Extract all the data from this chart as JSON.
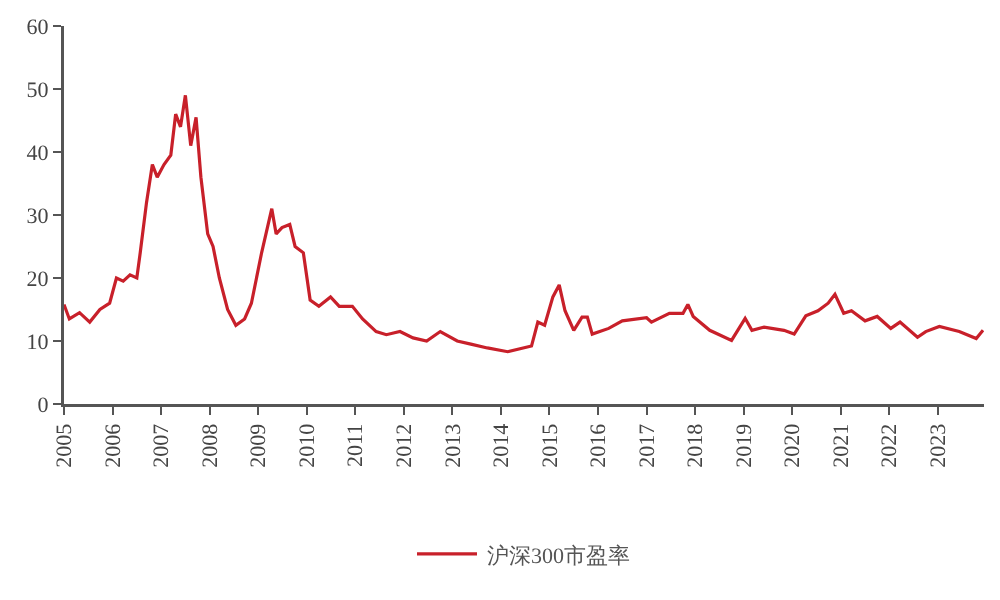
{
  "chart_data": {
    "type": "line",
    "x": [
      2005.0,
      2005.11,
      2005.32,
      2005.53,
      2005.74,
      2005.94,
      2006.08,
      2006.22,
      2006.36,
      2006.5,
      2006.57,
      2006.7,
      2006.82,
      2006.92,
      2007.06,
      2007.2,
      2007.3,
      2007.4,
      2007.5,
      2007.61,
      2007.72,
      2007.82,
      2007.96,
      2008.07,
      2008.2,
      2008.37,
      2008.54,
      2008.72,
      2008.86,
      2009.07,
      2009.28,
      2009.37,
      2009.49,
      2009.65,
      2009.76,
      2009.93,
      2010.07,
      2010.25,
      2010.49,
      2010.67,
      2010.94,
      2011.15,
      2011.43,
      2011.64,
      2011.92,
      2012.19,
      2012.47,
      2012.75,
      2013.1,
      2013.38,
      2013.72,
      2014.14,
      2014.63,
      2014.76,
      2014.9,
      2015.07,
      2015.2,
      2015.32,
      2015.5,
      2015.67,
      2015.78,
      2015.88,
      2016.22,
      2016.5,
      2017.0,
      2017.1,
      2017.47,
      2017.75,
      2017.85,
      2017.96,
      2018.3,
      2018.75,
      2019.03,
      2019.17,
      2019.42,
      2019.83,
      2020.04,
      2020.28,
      2020.53,
      2020.74,
      2020.88,
      2021.06,
      2021.22,
      2021.5,
      2021.75,
      2022.03,
      2022.22,
      2022.58,
      2022.75,
      2023.03,
      2023.44,
      2023.79,
      2023.93
    ],
    "series": [
      {
        "name": "沪深300市盈率",
        "color": "#c8202a",
        "values": [
          15.8,
          13.5,
          14.5,
          13,
          15,
          16,
          20,
          19.5,
          20.5,
          20,
          24,
          32,
          38,
          36,
          38,
          39.5,
          46,
          44,
          49,
          41,
          45.5,
          36,
          27,
          25,
          20,
          15,
          12.5,
          13.5,
          16,
          24,
          31,
          27,
          28,
          28.5,
          25,
          24,
          16.5,
          15.5,
          17,
          15.5,
          15.5,
          13.5,
          11.5,
          11,
          11.5,
          10.5,
          10,
          11.5,
          10,
          9.5,
          8.9,
          8.3,
          9.2,
          13,
          12.5,
          17,
          18.9,
          14.8,
          11.7,
          13.8,
          13.8,
          11.1,
          12,
          13.2,
          13.7,
          13,
          14.4,
          14.4,
          15.8,
          13.9,
          11.7,
          10.1,
          13.6,
          11.7,
          12.2,
          11.7,
          11.1,
          14,
          14.8,
          16,
          17.4,
          14.4,
          14.8,
          13.2,
          13.9,
          12,
          13,
          10.6,
          11.5,
          12.3,
          11.5,
          10.4,
          11.7
        ]
      }
    ],
    "xlim": [
      2005,
      2023.95
    ],
    "xticks": [
      2005,
      2006,
      2007,
      2008,
      2009,
      2010,
      2011,
      2012,
      2013,
      2014,
      2015,
      2016,
      2017,
      2018,
      2019,
      2020,
      2021,
      2022,
      2023
    ],
    "ylim": [
      0,
      60
    ],
    "yticks": [
      0,
      10,
      20,
      30,
      40,
      50,
      60
    ],
    "grid": false,
    "legend": "bottom",
    "marker": "none",
    "line_style": "solid"
  }
}
